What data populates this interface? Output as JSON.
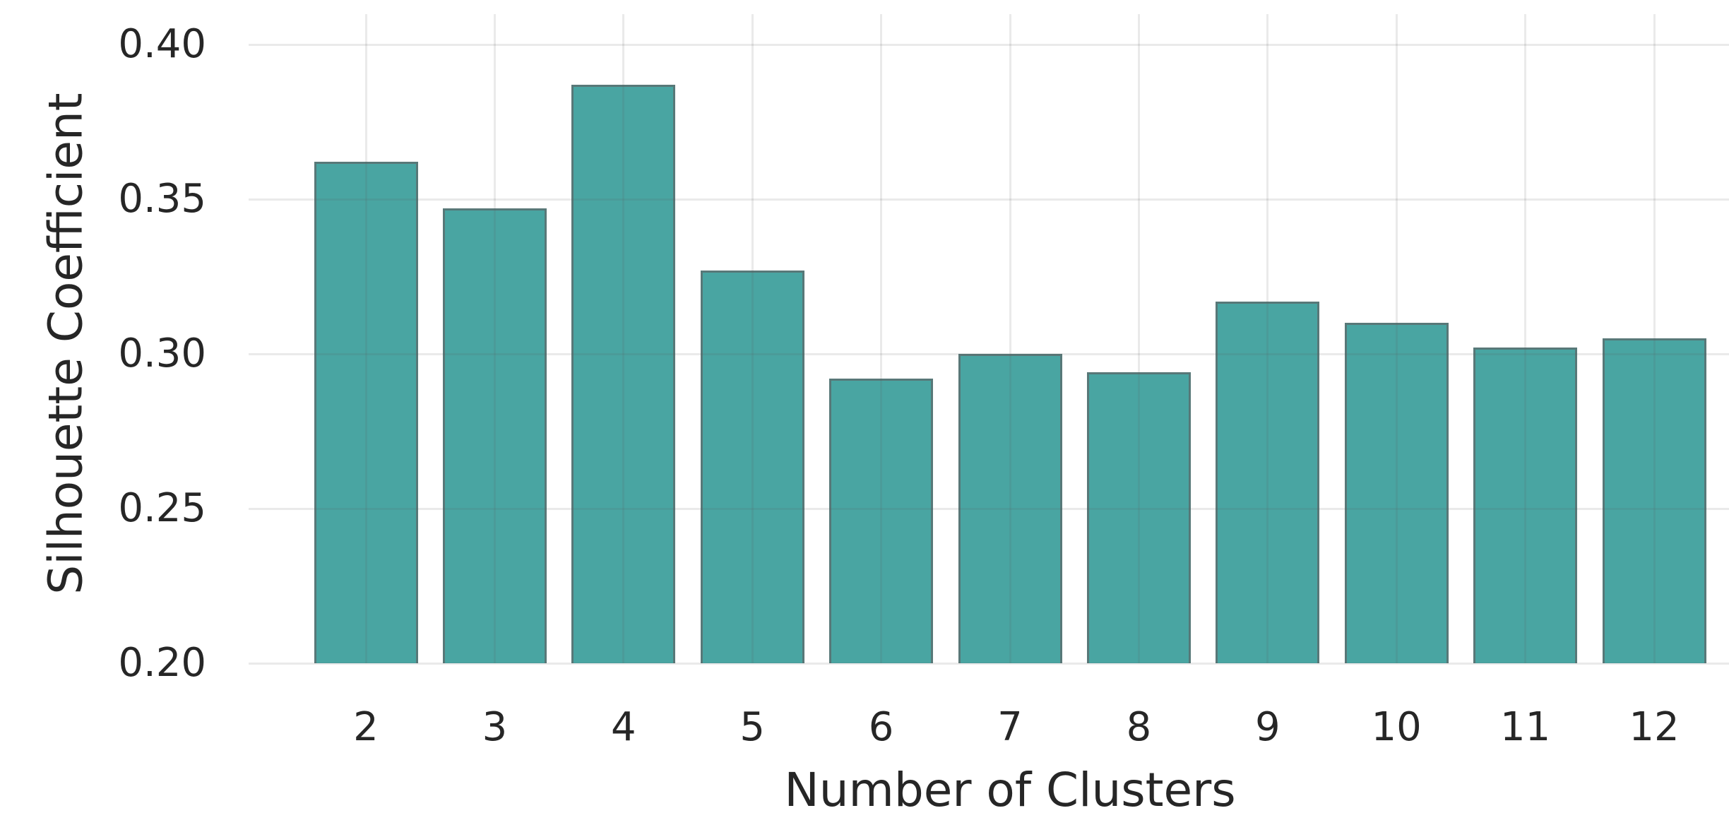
{
  "chart_data": {
    "type": "bar",
    "title": "",
    "xlabel": "Number of Clusters",
    "ylabel": "Silhouette Coefficient",
    "categories": [
      "2",
      "3",
      "4",
      "5",
      "6",
      "7",
      "8",
      "9",
      "10",
      "11",
      "12"
    ],
    "values": [
      0.362,
      0.347,
      0.387,
      0.327,
      0.292,
      0.3,
      0.294,
      0.317,
      0.31,
      0.302,
      0.305
    ],
    "ylim": [
      0.2,
      0.41
    ],
    "yticks": [
      0.2,
      0.25,
      0.3,
      0.35,
      0.4
    ],
    "ytick_labels": [
      "0.20",
      "0.25",
      "0.30",
      "0.35",
      "0.40"
    ],
    "grid": "on",
    "legend": "none",
    "colors": {
      "bar_fill": "#49a5a2",
      "bar_edge": "#587878",
      "gridline": "#e1e1e1",
      "text": "#262626",
      "background": "#ffffff"
    }
  }
}
